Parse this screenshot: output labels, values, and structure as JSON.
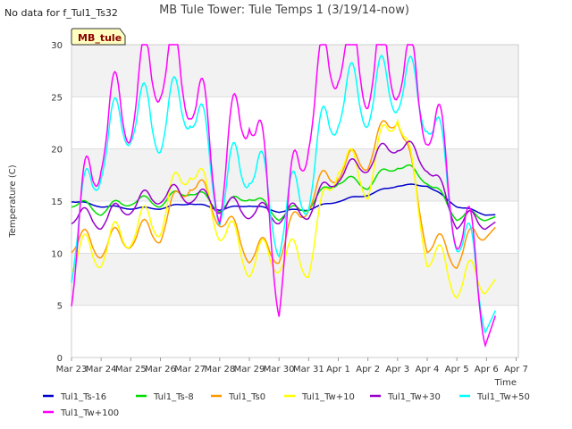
{
  "notice": "No data for f_Tul1_Ts32",
  "badge": "MB_tule",
  "chart_data": {
    "type": "line",
    "title": "MB Tule Tower: Tule Temps 1 (3/19/14-now)",
    "xlabel": "Time",
    "ylabel": "Temperature (C)",
    "ylim": [
      0,
      30
    ],
    "yticks": [
      0,
      5,
      10,
      15,
      20,
      25,
      30
    ],
    "xlim": [
      "2014-03-23",
      "2014-04-07"
    ],
    "xticks": [
      "Mar 23",
      "Mar 24",
      "Mar 25",
      "Mar 26",
      "Mar 27",
      "Mar 28",
      "Mar 29",
      "Mar 30",
      "Mar 31",
      "Apr 1",
      "Apr 2",
      "Apr 3",
      "Apr 4",
      "Apr 5",
      "Apr 6",
      "Apr 7"
    ],
    "grid": true,
    "background_bands": true,
    "legend_position": "bottom",
    "x": [
      "03-23",
      "03-24",
      "03-25",
      "03-26",
      "03-27",
      "03-28",
      "03-29",
      "03-30",
      "03-31",
      "04-01",
      "04-02",
      "04-03",
      "04-04",
      "04-05",
      "04-06"
    ],
    "series": [
      {
        "name": "Tul1_Ts-16",
        "color": "#0000cc",
        "values": [
          15.0,
          14.5,
          14.3,
          14.3,
          14.8,
          14.2,
          14.6,
          14.0,
          14.2,
          15.0,
          15.6,
          16.5,
          16.5,
          14.5,
          13.7
        ]
      },
      {
        "name": "Tul1_Ts-8",
        "color": "#00dd00",
        "values": [
          14.8,
          14.0,
          15.0,
          14.8,
          16.0,
          14.3,
          15.5,
          13.5,
          14.5,
          17.0,
          16.5,
          18.5,
          17.0,
          13.5,
          13.5
        ]
      },
      {
        "name": "Tul1_Ts0",
        "color": "#ff9900",
        "values": [
          11.0,
          10.5,
          11.5,
          12.0,
          17.0,
          13.5,
          10.0,
          10.0,
          15.0,
          18.0,
          19.0,
          23.5,
          11.0,
          9.5,
          12.5
        ]
      },
      {
        "name": "Tul1_Tw+10",
        "color": "#ffff00",
        "values": [
          9.5,
          10.0,
          12.0,
          13.0,
          18.5,
          12.5,
          9.0,
          9.5,
          9.0,
          19.0,
          16.5,
          24.0,
          10.0,
          7.0,
          7.5
        ]
      },
      {
        "name": "Tul1_Tw+30",
        "color": "#9900cc",
        "values": [
          13.5,
          13.0,
          14.5,
          15.5,
          15.5,
          14.5,
          14.0,
          13.5,
          14.0,
          17.5,
          18.5,
          20.5,
          18.5,
          13.0,
          13.0
        ]
      },
      {
        "name": "Tul1_Tw+50",
        "color": "#00ffff",
        "values": [
          9.5,
          19.5,
          23.0,
          22.0,
          24.5,
          15.0,
          19.0,
          12.0,
          16.5,
          24.5,
          24.5,
          26.0,
          24.0,
          12.5,
          4.5
        ]
      },
      {
        "name": "Tul1_Tw+100",
        "color": "#ff00ff",
        "values": [
          8.0,
          21.0,
          24.0,
          28.0,
          26.0,
          16.0,
          25.0,
          7.0,
          23.0,
          29.5,
          27.0,
          28.0,
          23.5,
          13.5,
          4.0
        ]
      }
    ]
  }
}
